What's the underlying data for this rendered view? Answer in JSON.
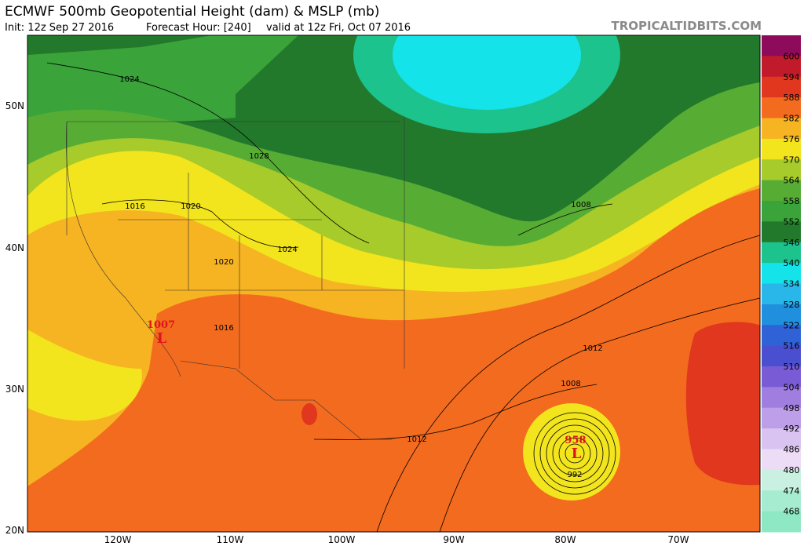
{
  "header": {
    "title": "ECMWF 500mb Geopotential Height (dam) & MSLP (mb)",
    "init": "Init: 12z Sep 27 2016",
    "forecast_hour": "Forecast Hour: [240]",
    "valid": "valid at 12z Fri, Oct 07 2016",
    "source": "TROPICALTIDBITS.COM"
  },
  "colorbar": {
    "labels": [
      "600",
      "594",
      "588",
      "582",
      "576",
      "570",
      "564",
      "558",
      "552",
      "546",
      "540",
      "534",
      "528",
      "522",
      "516",
      "510",
      "504",
      "498",
      "492",
      "486",
      "480",
      "474",
      "468"
    ]
  },
  "latitude_labels": [
    "50N",
    "40N",
    "30N",
    "20N"
  ],
  "longitude_labels": [
    "120W",
    "110W",
    "100W",
    "90W",
    "80W",
    "70W"
  ],
  "isobar_labels": [
    "1024",
    "1028",
    "1016",
    "1020",
    "1020",
    "1024",
    "1016",
    "1008",
    "1012",
    "1008",
    "1012",
    "992"
  ],
  "pressure_centers": [
    {
      "value": "1007",
      "symbol": "L"
    },
    {
      "value": "958",
      "symbol": "L"
    }
  ]
}
